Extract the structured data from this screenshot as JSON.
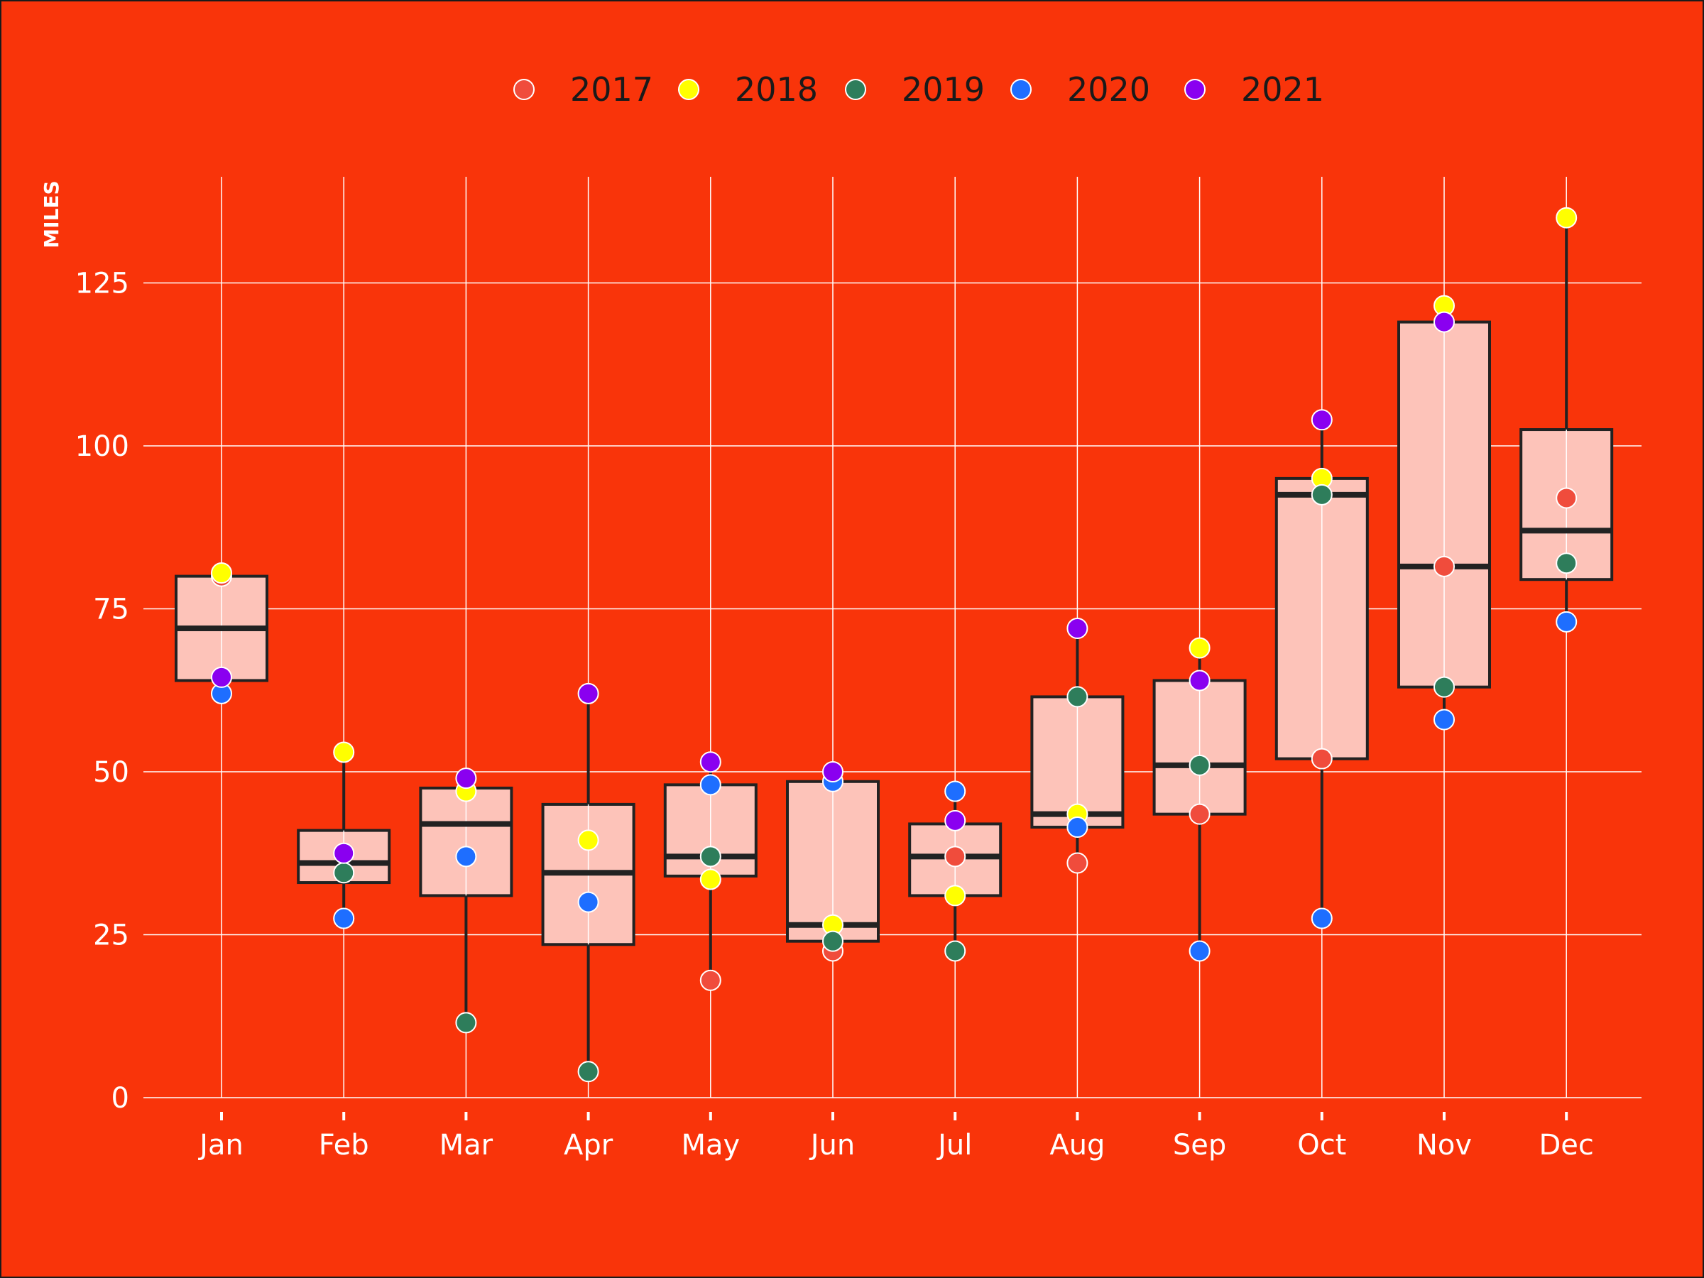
{
  "chart_data": {
    "type": "box",
    "ylabel": "MILES",
    "xlabel": "",
    "ylim": [
      0,
      140
    ],
    "y_ticks": [
      0,
      25,
      50,
      75,
      100,
      125
    ],
    "grid": true,
    "legend_position": "top-center",
    "categories": [
      "Jan",
      "Feb",
      "Mar",
      "Apr",
      "May",
      "Jun",
      "Jul",
      "Aug",
      "Sep",
      "Oct",
      "Nov",
      "Dec"
    ],
    "series": [
      {
        "name": "2017",
        "color": "#f04c3c",
        "values": [
          80,
          null,
          null,
          null,
          18,
          22.5,
          37,
          36,
          43.5,
          52,
          81.5,
          92
        ]
      },
      {
        "name": "2018",
        "color": "#ffff00",
        "values": [
          80.5,
          53,
          47,
          39.5,
          33.5,
          26.5,
          31,
          43.5,
          69,
          95,
          121.5,
          135
        ]
      },
      {
        "name": "2019",
        "color": "#2e7d5b",
        "values": [
          null,
          34.5,
          11.5,
          4,
          37,
          24,
          22.5,
          61.5,
          51,
          92.5,
          63,
          82
        ]
      },
      {
        "name": "2020",
        "color": "#1e6eff",
        "values": [
          62,
          27.5,
          37,
          30,
          48,
          48.5,
          47,
          41.5,
          22.5,
          27.5,
          58,
          73
        ]
      },
      {
        "name": "2021",
        "color": "#8a00f0",
        "values": [
          64.5,
          37.5,
          49,
          62,
          51.5,
          50,
          42.5,
          72,
          64,
          104,
          119,
          null
        ]
      }
    ],
    "boxes": [
      {
        "month": "Jan",
        "whisker_low": 62,
        "q1": 64,
        "median": 72,
        "q3": 80,
        "whisker_high": 80.5
      },
      {
        "month": "Feb",
        "whisker_low": 27.5,
        "q1": 33,
        "median": 36,
        "q3": 41,
        "whisker_high": 53
      },
      {
        "month": "Mar",
        "whisker_low": 11.5,
        "q1": 31,
        "median": 42,
        "q3": 47.5,
        "whisker_high": 49
      },
      {
        "month": "Apr",
        "whisker_low": 4,
        "q1": 23.5,
        "median": 34.5,
        "q3": 45,
        "whisker_high": 62
      },
      {
        "month": "May",
        "whisker_low": 18,
        "q1": 34,
        "median": 37,
        "q3": 48,
        "whisker_high": 51.5
      },
      {
        "month": "Jun",
        "whisker_low": 22.5,
        "q1": 24,
        "median": 26.5,
        "q3": 48.5,
        "whisker_high": 50
      },
      {
        "month": "Jul",
        "whisker_low": 22.5,
        "q1": 31,
        "median": 37,
        "q3": 42,
        "whisker_high": 47
      },
      {
        "month": "Aug",
        "whisker_low": 36,
        "q1": 41.5,
        "median": 43.5,
        "q3": 61.5,
        "whisker_high": 72
      },
      {
        "month": "Sep",
        "whisker_low": 22.5,
        "q1": 43.5,
        "median": 51,
        "q3": 64,
        "whisker_high": 69
      },
      {
        "month": "Oct",
        "whisker_low": 27.5,
        "q1": 52,
        "median": 92.5,
        "q3": 95,
        "whisker_high": 104
      },
      {
        "month": "Nov",
        "whisker_low": 58,
        "q1": 63,
        "median": 81.5,
        "q3": 119,
        "whisker_high": 121.5
      },
      {
        "month": "Dec",
        "whisker_low": 73,
        "q1": 79.5,
        "median": 87,
        "q3": 102.5,
        "whisker_high": 135
      }
    ]
  },
  "colors": {
    "background": "#f9340a",
    "box_fill": "#fdc3b9",
    "box_stroke": "#222222",
    "grid": "#ffffff"
  }
}
